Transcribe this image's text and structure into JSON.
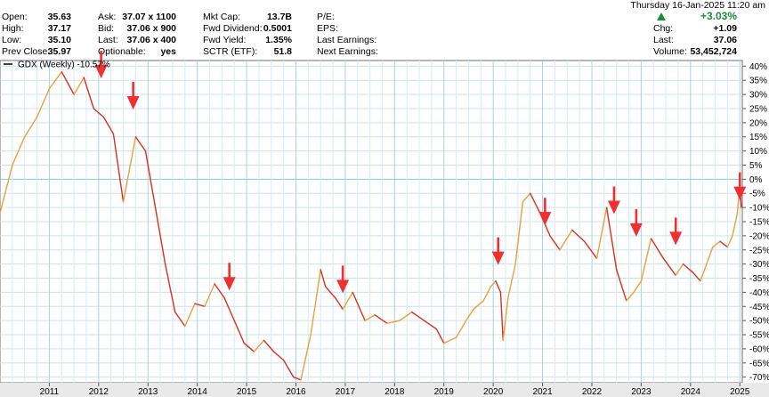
{
  "header": {
    "datetime": "Thursday  16-Jan-2025  11:20 am",
    "change_pct": "+3.03%",
    "change_color": "#1f8a3b",
    "col1": [
      {
        "label": "Open:",
        "value": "35.63"
      },
      {
        "label": "High:",
        "value": "37.17"
      },
      {
        "label": "Low:",
        "value": "35.10"
      },
      {
        "label": "Prev Close:",
        "value": "35.97"
      }
    ],
    "col2": [
      {
        "label": "Ask:",
        "value": "37.07 x 1100"
      },
      {
        "label": "Bid:",
        "value": "37.06 x 900"
      },
      {
        "label": "Last:",
        "value": "37.06 x 400"
      },
      {
        "label": "Optionable:",
        "value": "yes"
      }
    ],
    "col3": [
      {
        "label": "Mkt Cap:",
        "value": "13.7B"
      },
      {
        "label": "Fwd Dividend:",
        "value": "0.5001"
      },
      {
        "label": "Fwd Yield:",
        "value": "1.35%"
      },
      {
        "label": "SCTR (ETF):",
        "value": "51.8"
      }
    ],
    "col4": [
      {
        "label": "P/E:",
        "value": ""
      },
      {
        "label": "EPS:",
        "value": ""
      },
      {
        "label": "Last Earnings:",
        "value": ""
      },
      {
        "label": "Next Earnings:",
        "value": ""
      }
    ],
    "col5": [
      {
        "label": "Chg:",
        "value": "+1.09"
      },
      {
        "label": "Last:",
        "value": "37.06"
      },
      {
        "label": "Volume:",
        "value": "53,452,724"
      }
    ]
  },
  "legend": "GDX (Weekly) -10.57%",
  "chart_data": {
    "type": "line",
    "series": [
      {
        "name": "GDX (Weekly) -10.57%",
        "x": [
          2010.0,
          2010.25,
          2010.5,
          2010.75,
          2011.0,
          2011.25,
          2011.5,
          2011.7,
          2011.9,
          2012.1,
          2012.3,
          2012.5,
          2012.75,
          2012.95,
          2013.15,
          2013.35,
          2013.55,
          2013.75,
          2013.95,
          2014.15,
          2014.35,
          2014.55,
          2014.75,
          2014.95,
          2015.15,
          2015.35,
          2015.55,
          2015.75,
          2015.95,
          2016.1,
          2016.3,
          2016.5,
          2016.6,
          2016.8,
          2016.95,
          2017.15,
          2017.4,
          2017.6,
          2017.85,
          2018.1,
          2018.35,
          2018.6,
          2018.85,
          2019.0,
          2019.25,
          2019.45,
          2019.6,
          2019.8,
          2019.95,
          2020.05,
          2020.15,
          2020.2,
          2020.3,
          2020.45,
          2020.6,
          2020.75,
          2020.95,
          2021.15,
          2021.35,
          2021.6,
          2021.85,
          2022.1,
          2022.3,
          2022.5,
          2022.7,
          2022.85,
          2023.0,
          2023.2,
          2023.45,
          2023.7,
          2023.85,
          2024.05,
          2024.2,
          2024.45,
          2024.6,
          2024.75,
          2024.85,
          2024.95,
          2025.0,
          2025.03
        ],
        "y": [
          -12,
          5,
          15,
          22,
          32,
          38,
          30,
          36,
          25,
          22,
          16,
          -8,
          15,
          10,
          -10,
          -30,
          -47,
          -52,
          -44,
          -45,
          -37,
          -42,
          -50,
          -58,
          -61,
          -57,
          -61,
          -64,
          -70,
          -71,
          -55,
          -32,
          -38,
          -42,
          -46,
          -40,
          -50,
          -48,
          -51,
          -50,
          -47,
          -50,
          -53,
          -58,
          -56,
          -50,
          -46,
          -43,
          -38,
          -36,
          -40,
          -57,
          -42,
          -30,
          -8,
          -5,
          -12,
          -20,
          -25,
          -18,
          -22,
          -28,
          -10,
          -32,
          -43,
          -40,
          -36,
          -21,
          -28,
          -34,
          -30,
          -33,
          -36,
          -24,
          -22,
          -24,
          -20,
          -12,
          -2,
          -10
        ]
      }
    ],
    "x_ticks": [
      "2011",
      "2012",
      "2013",
      "2014",
      "2015",
      "2016",
      "2017",
      "2018",
      "2019",
      "2020",
      "2021",
      "2022",
      "2023",
      "2024",
      "2025"
    ],
    "y_ticks": [
      "40%",
      "35%",
      "30%",
      "25%",
      "20%",
      "15%",
      "10%",
      "5%",
      "0%",
      "-5%",
      "-10%",
      "-15%",
      "-20%",
      "-25%",
      "-30%",
      "-35%",
      "-40%",
      "-45%",
      "-50%",
      "-55%",
      "-60%",
      "-65%",
      "-70%"
    ],
    "ylim": [
      -72,
      42
    ],
    "xlim": [
      2010.0,
      2025.05
    ],
    "arrows": [
      {
        "x": 2012.05,
        "y": 36
      },
      {
        "x": 2012.7,
        "y": 25
      },
      {
        "x": 2014.65,
        "y": -39
      },
      {
        "x": 2016.95,
        "y": -40
      },
      {
        "x": 2020.1,
        "y": -30
      },
      {
        "x": 2021.05,
        "y": -16
      },
      {
        "x": 2022.45,
        "y": -12
      },
      {
        "x": 2022.9,
        "y": -20
      },
      {
        "x": 2023.7,
        "y": -23
      },
      {
        "x": 2025.0,
        "y": -7
      }
    ],
    "line_up_color": "#e8a13c",
    "line_down_color": "#d7301f",
    "arrow_color": "#f03030",
    "grid": true,
    "legend_position": "top-left"
  }
}
